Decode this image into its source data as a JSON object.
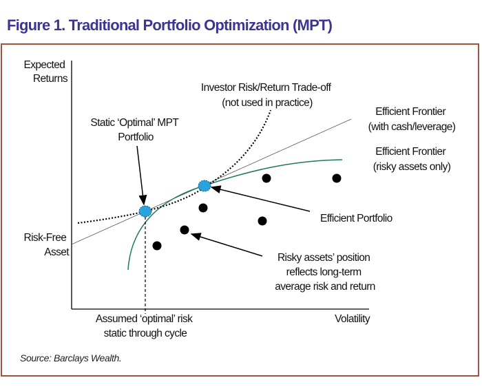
{
  "title": "Figure 1. Traditional Portfolio Optimization (MPT)",
  "source": "Source: Barclays Wealth.",
  "colors": {
    "title": "#3d3592",
    "frame": "#a4503c",
    "frontier": "#1a7a5a",
    "portfolio_marker": "#29a3dc",
    "asset_marker": "#000000"
  },
  "axes": {
    "y_label": [
      "Expected",
      "Returns"
    ],
    "x_label": "Volatility",
    "risk_free": [
      "Risk-Free",
      "Asset"
    ],
    "assumed_risk": [
      "Assumed ‘optimal’ risk",
      "static through cycle"
    ]
  },
  "labels": {
    "tradeoff": [
      "Investor Risk/Return Trade-off",
      "(not used in practice)"
    ],
    "frontier_cash": [
      "Efficient Frontier",
      "(with cash/leverage)"
    ],
    "frontier_risky": [
      "Efficient Frontier",
      "(risky assets only)"
    ],
    "static_optimal": [
      "Static ‘Optimal’ MPT",
      "Portfolio"
    ],
    "efficient_portfolio": "Efficient Portfolio",
    "risky_assets": [
      "Risky assets’ position",
      "reflects long-term",
      "average risk and return"
    ]
  }
}
